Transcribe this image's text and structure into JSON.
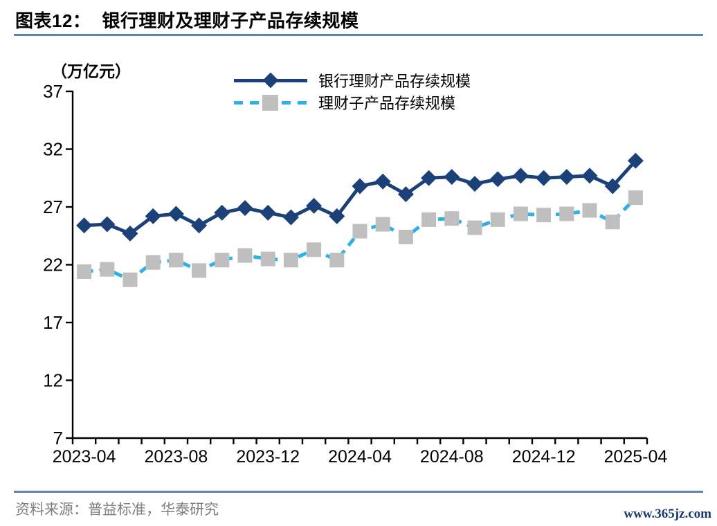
{
  "header": {
    "label": "图表12：",
    "title": "银行理财及理财子产品存续规模"
  },
  "footer": {
    "source": "资料来源：普益标准，华泰研究",
    "watermark": "www.365jz.com"
  },
  "colors": {
    "bank_series": "#1B4178",
    "subsidiary_line": "#2EB1E8",
    "subsidiary_marker": "#BFBFBF",
    "divider_rule": "#5B84B8",
    "source_text": "#7F7F7F",
    "watermark_text": "#16386E",
    "axis": "#000000"
  },
  "chart_data": {
    "type": "line",
    "title": "银行理财及理财子产品存续规模",
    "unit_label": "（万亿元）",
    "xlabel": "",
    "ylabel": "万亿元",
    "ylim": [
      7,
      37
    ],
    "yticks": [
      37,
      32,
      27,
      22,
      17,
      12,
      7
    ],
    "grid": false,
    "legend_position": "top-center",
    "x_label_every": 4,
    "categories": [
      "2023-04",
      "2023-05",
      "2023-06",
      "2023-07",
      "2023-08",
      "2023-09",
      "2023-10",
      "2023-11",
      "2023-12",
      "2024-01",
      "2024-02",
      "2024-03",
      "2024-04",
      "2024-05",
      "2024-06",
      "2024-07",
      "2024-08",
      "2024-09",
      "2024-10",
      "2024-11",
      "2024-12",
      "2025-01",
      "2025-02",
      "2025-03",
      "2025-04"
    ],
    "x_tick_labels": [
      "2023-04",
      "2023-08",
      "2023-12",
      "2024-04",
      "2024-08",
      "2024-12",
      "2025-04"
    ],
    "series": [
      {
        "name": "银行理财产品存续规模",
        "marker": "diamond",
        "line_style": "solid",
        "color": "#1B4178",
        "values": [
          25.4,
          25.5,
          24.7,
          26.2,
          26.4,
          25.4,
          26.5,
          26.9,
          26.5,
          26.1,
          27.1,
          26.2,
          28.8,
          29.2,
          28.1,
          29.5,
          29.6,
          29.0,
          29.4,
          29.7,
          29.5,
          29.6,
          29.7,
          28.8,
          31.0
        ]
      },
      {
        "name": "理财子产品存续规模",
        "marker": "square",
        "line_style": "dashed",
        "color": "#2EB1E8",
        "marker_color": "#BFBFBF",
        "values": [
          21.4,
          21.6,
          20.7,
          22.2,
          22.4,
          21.5,
          22.4,
          22.8,
          22.5,
          22.4,
          23.3,
          22.4,
          24.9,
          25.5,
          24.4,
          25.9,
          26.0,
          25.2,
          25.9,
          26.4,
          26.3,
          26.4,
          26.7,
          25.7,
          27.8
        ]
      }
    ]
  }
}
